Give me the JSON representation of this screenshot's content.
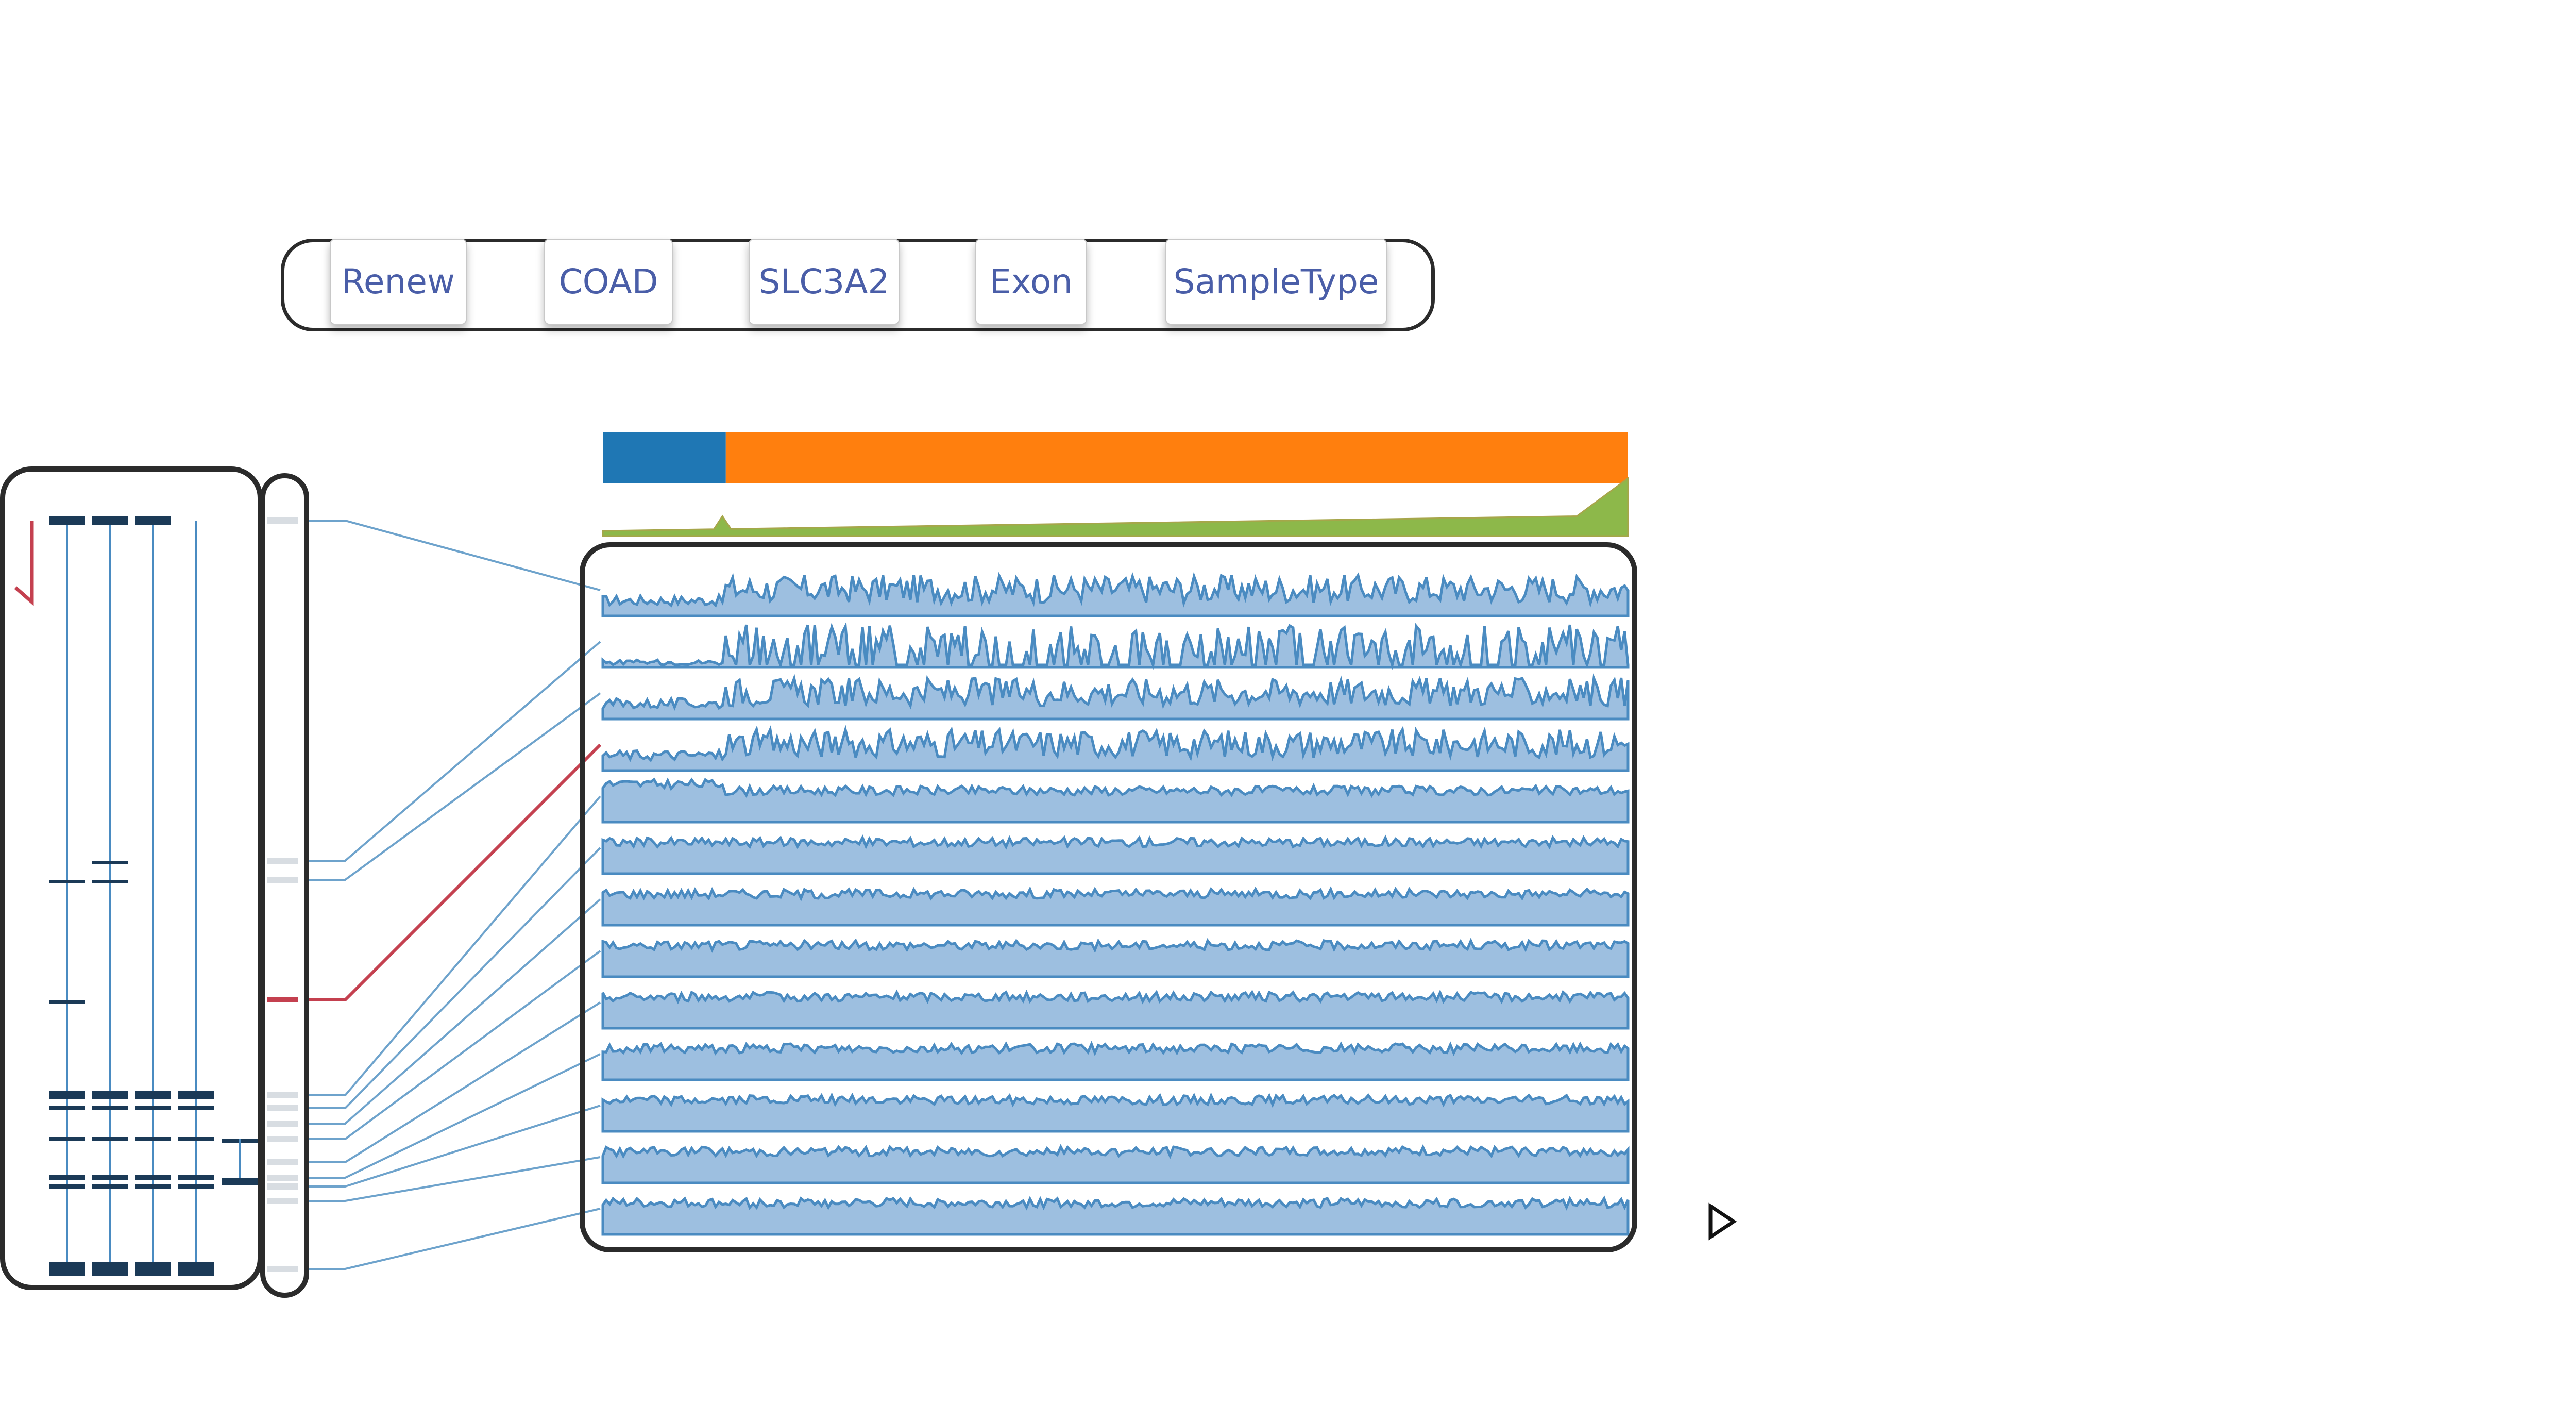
{
  "toolbar": {
    "buttons": [
      {
        "label": "Renew"
      },
      {
        "label": "COAD"
      },
      {
        "label": "SLC3A2"
      },
      {
        "label": "Exon"
      },
      {
        "label": "SampleType"
      }
    ]
  },
  "colors": {
    "segment_a": "#1f77b4",
    "segment_b": "#ff7f0e",
    "coverage": "#8db84a",
    "track_fill": "#9dbfe0",
    "track_line": "#4a8bc1",
    "link_line": "#6ea3cc",
    "highlight": "#c4404f",
    "exon_block": "#1b3a57"
  },
  "icons": {
    "play": "play-triangle-icon"
  },
  "tracks": {
    "count": 13,
    "highlighted_index": 3
  },
  "top_bar": {
    "segment_a_fraction": 0.12
  }
}
